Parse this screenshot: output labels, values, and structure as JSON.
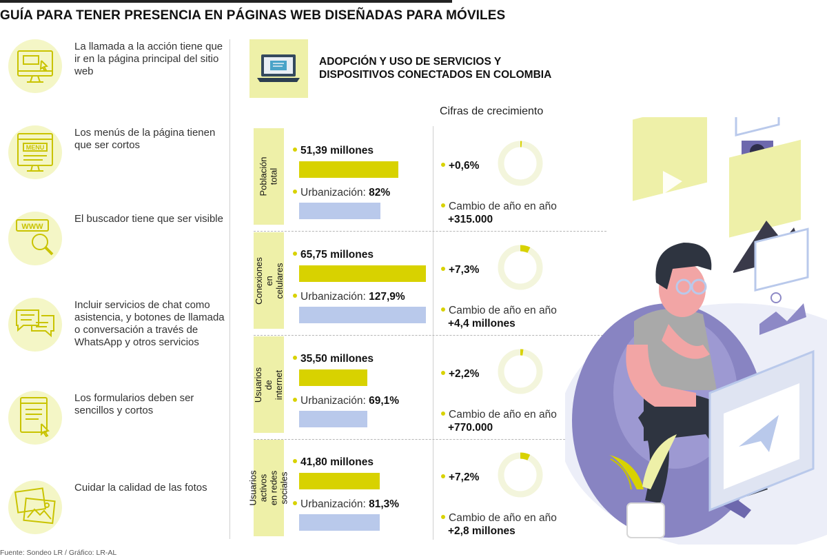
{
  "title": "GUÍA PARA TENER PRESENCIA EN PÁGINAS WEB DISEÑADAS PARA MÓVILES",
  "tips": [
    {
      "icon": "website-click-icon",
      "text": "La llamada a la acción tiene que ir en la página principal del sitio web"
    },
    {
      "icon": "menu-screen-icon",
      "text": "Los menús de la página tienen que ser cortos"
    },
    {
      "icon": "www-search-icon",
      "text": "El buscador tiene que ser visible"
    },
    {
      "icon": "chat-bubbles-icon",
      "text": "Incluir servicios de chat como asistencia, y botones de llamada o conversación a través de WhatsApp y otros servicios"
    },
    {
      "icon": "form-click-icon",
      "text": "Los formularios deben ser sencillos y cortos"
    },
    {
      "icon": "photos-icon",
      "text": "Cuidar la calidad de las fotos"
    }
  ],
  "right_title": "ADOPCIÓN Y USO DE SERVICIOS Y DISPOSITIVOS CONECTADOS EN COLOMBIA",
  "growth_label": "Cifras de crecimiento",
  "urb_prefix": "Urbanización:",
  "change_label": "Cambio de año en año",
  "colors": {
    "accent_yellow": "#d8d200",
    "bar_blue": "#b9c9eb",
    "band_yellow": "#eef0a8",
    "donut_track": "#f3f5dc"
  },
  "chart_data": {
    "type": "bar",
    "title": "ADOPCIÓN Y USO DE SERVICIOS Y DISPOSITIVOS CONECTADOS EN COLOMBIA",
    "categories": [
      "Población total",
      "Conexiones en celulares",
      "Usuarios de internet",
      "Usuarios activos en redes sociales"
    ],
    "series": [
      {
        "values": [
          51.39,
          65.75,
          35.5,
          41.8
        ],
        "labels": [
          "51,39 millones",
          "65,75 millones",
          "35,50 millones",
          "41,80 millones"
        ]
      },
      {
        "values": [
          82,
          127.9,
          69.1,
          81.3
        ],
        "labels": [
          "82%",
          "127,9%",
          "69,1%",
          "81,3%"
        ]
      }
    ],
    "growth": [
      {
        "pct": 0.6,
        "pct_label": "+0,6%",
        "change": "+315.000"
      },
      {
        "pct": 7.3,
        "pct_label": "+7,3%",
        "change": "+4,4 millones"
      },
      {
        "pct": 2.2,
        "pct_label": "+2,2%",
        "change": "+770.000"
      },
      {
        "pct": 7.2,
        "pct_label": "+7,2%",
        "change": "+2,8 millones"
      }
    ]
  },
  "footer": "Fuente: Sondeo LR / Gráfico: LR-AL"
}
